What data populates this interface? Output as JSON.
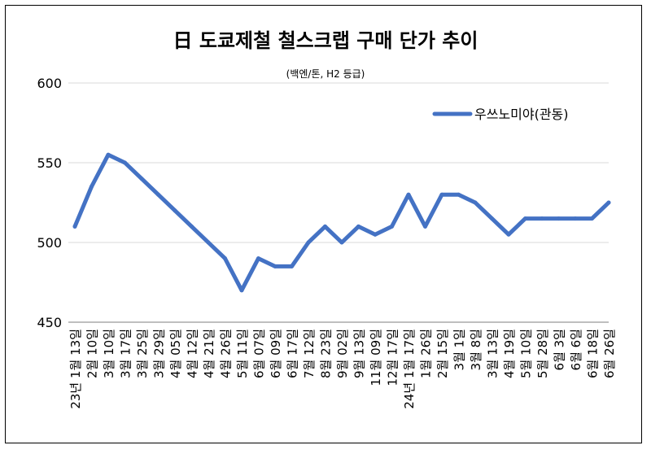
{
  "chart_data": {
    "type": "line",
    "title": "日 도쿄제철 철스크랩 구매 단가 추이",
    "subtitle": "(백엔/톤, H2 등급)",
    "ylim": [
      450,
      600
    ],
    "yticks": [
      "600",
      "550",
      "500",
      "450"
    ],
    "grid": true,
    "legend_position": "top-right",
    "series_color": "#4472C4",
    "x": [
      "23년 1월 13일",
      "2월 10일",
      "3월 10일",
      "3월 17일",
      "3월 25일",
      "3월 29일",
      "4월 05일",
      "4월 12일",
      "4월 21일",
      "4월 26일",
      "5월 11일",
      "6월 07일",
      "6월 09일",
      "6월 17일",
      "7월 12일",
      "8월 23일",
      "9월 02일",
      "9월 13일",
      "11월 09일",
      "12월 17일",
      "24년 1월 17일",
      "1월 26일",
      "2월 15일",
      "3월 1일",
      "3월 8일",
      "3월 13일",
      "4월 19일",
      "5월 10일",
      "5월 28일",
      "6월 3일",
      "6월 6일",
      "6월 18일",
      "6월 26일"
    ],
    "series": [
      {
        "name": "우쓰노미야(관동)",
        "values": [
          510,
          535,
          555,
          550,
          540,
          530,
          520,
          510,
          500,
          490,
          470,
          490,
          485,
          485,
          500,
          510,
          500,
          510,
          505,
          510,
          530,
          510,
          530,
          530,
          525,
          515,
          505,
          515,
          515,
          515,
          515,
          515,
          525
        ]
      }
    ]
  }
}
